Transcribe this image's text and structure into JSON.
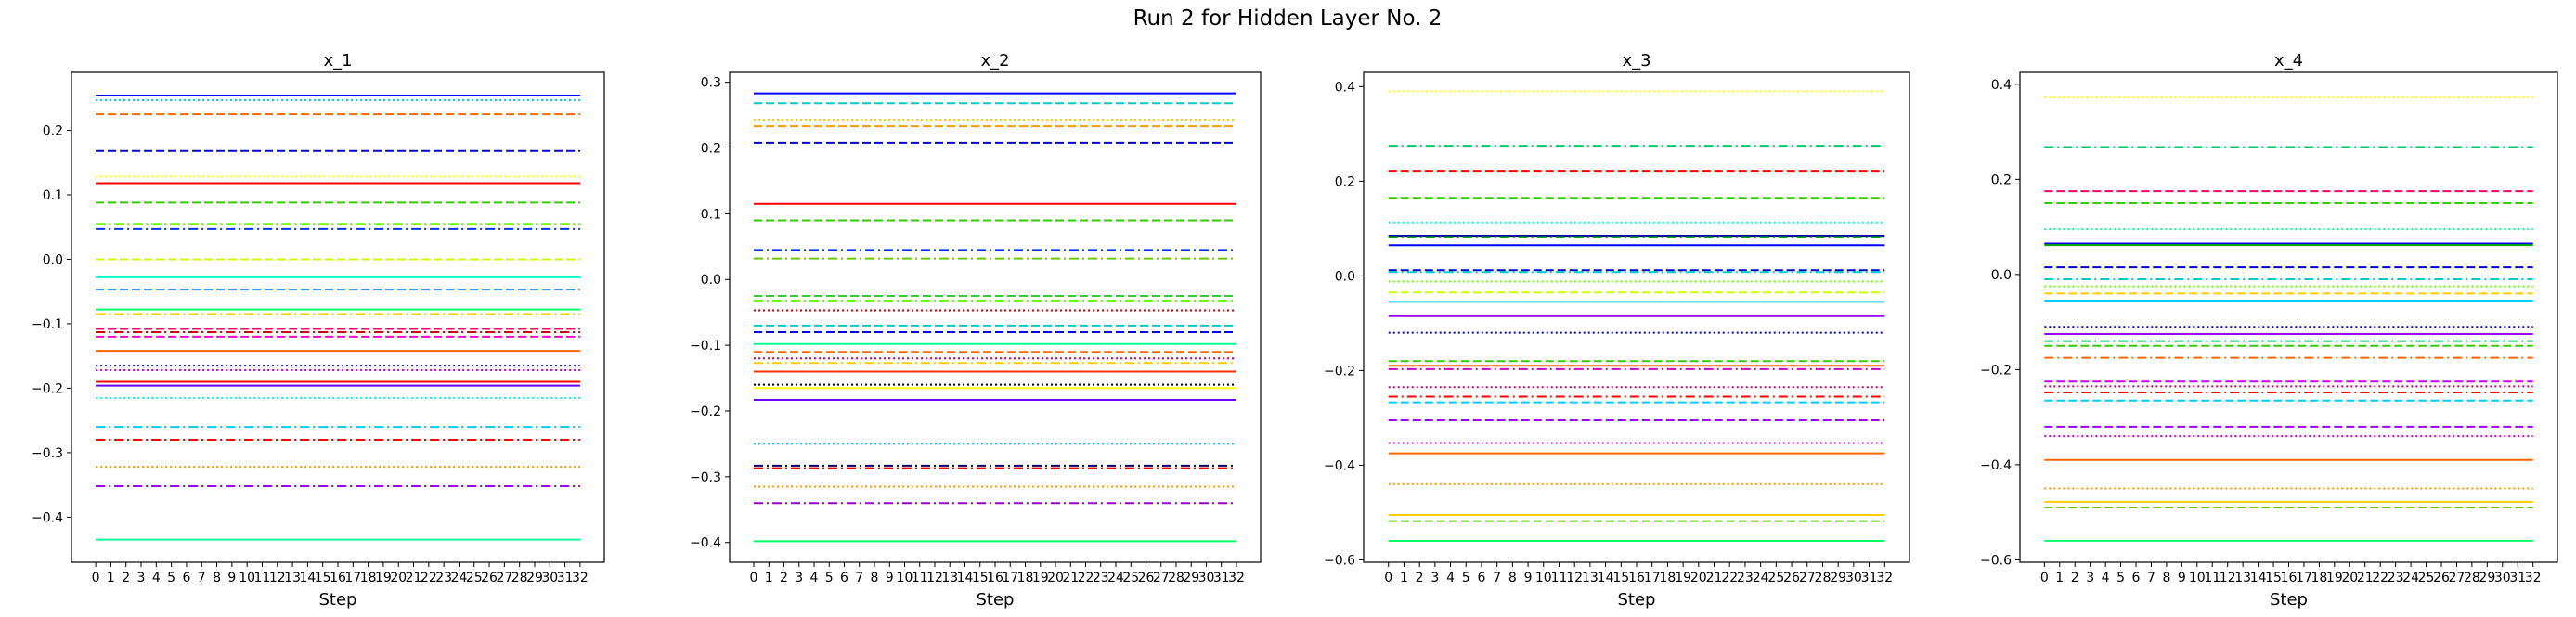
{
  "figure": {
    "title": "Run 2 for Hidden Layer No. 2"
  },
  "chart_data": [
    {
      "type": "line",
      "title": "x_1",
      "xlabel": "Step",
      "ylabel": "",
      "x_ticks": [
        0,
        1,
        2,
        3,
        4,
        5,
        6,
        7,
        8,
        9,
        10,
        11,
        12,
        13,
        14,
        15,
        16,
        17,
        18,
        19,
        20,
        21,
        22,
        23,
        24,
        25,
        26,
        27,
        28,
        29,
        30,
        31,
        32
      ],
      "xlim": [
        -1.6,
        33.6
      ],
      "ylim": [
        -0.47,
        0.29
      ],
      "y_ticks": [
        -0.4,
        -0.3,
        -0.2,
        -0.1,
        0.0,
        0.1,
        0.2
      ],
      "grid": false,
      "series": [
        {
          "values_constant": 0.254,
          "color": "#0000ff",
          "style": "solid"
        },
        {
          "values_constant": 0.247,
          "color": "#00bfff",
          "style": "dotted"
        },
        {
          "values_constant": 0.225,
          "color": "#ff6600",
          "style": "dashed"
        },
        {
          "values_constant": 0.168,
          "color": "#0000cc",
          "style": "dashed"
        },
        {
          "values_constant": 0.128,
          "color": "#ffff00",
          "style": "dotted"
        },
        {
          "values_constant": 0.118,
          "color": "#ff0000",
          "style": "solid"
        },
        {
          "values_constant": 0.088,
          "color": "#33cc00",
          "style": "dashed"
        },
        {
          "values_constant": 0.055,
          "color": "#66ff00",
          "style": "dashdot"
        },
        {
          "values_constant": 0.047,
          "color": "#0033ff",
          "style": "dashdot"
        },
        {
          "values_constant": 0.0,
          "color": "#ccff00",
          "style": "dashed"
        },
        {
          "values_constant": -0.028,
          "color": "#00ffcc",
          "style": "solid"
        },
        {
          "values_constant": -0.047,
          "color": "#3399ff",
          "style": "dashed"
        },
        {
          "values_constant": -0.078,
          "color": "#00ff66",
          "style": "solid"
        },
        {
          "values_constant": -0.085,
          "color": "#ffcc00",
          "style": "dashdot"
        },
        {
          "values_constant": -0.108,
          "color": "#ff0066",
          "style": "dashed"
        },
        {
          "values_constant": -0.113,
          "color": "#cc0000",
          "style": "dashdot"
        },
        {
          "values_constant": -0.12,
          "color": "#ff00cc",
          "style": "dashed"
        },
        {
          "values_constant": -0.142,
          "color": "#ff6600",
          "style": "solid"
        },
        {
          "values_constant": -0.165,
          "color": "#0000aa",
          "style": "dotted"
        },
        {
          "values_constant": -0.172,
          "color": "#cc00ff",
          "style": "dotted"
        },
        {
          "values_constant": -0.19,
          "color": "#ff0000",
          "style": "solid"
        },
        {
          "values_constant": -0.196,
          "color": "#6600ff",
          "style": "solid"
        },
        {
          "values_constant": -0.215,
          "color": "#00ffcc",
          "style": "dotted"
        },
        {
          "values_constant": -0.26,
          "color": "#00ccff",
          "style": "dashdot"
        },
        {
          "values_constant": -0.28,
          "color": "#ff0000",
          "style": "dashdot"
        },
        {
          "values_constant": -0.322,
          "color": "#ff9900",
          "style": "dotted"
        },
        {
          "values_constant": -0.352,
          "color": "#9900ff",
          "style": "dashdot"
        },
        {
          "values_constant": -0.435,
          "color": "#00ff99",
          "style": "solid"
        }
      ]
    },
    {
      "type": "line",
      "title": "x_2",
      "xlabel": "Step",
      "ylabel": "",
      "x_ticks": [
        0,
        1,
        2,
        3,
        4,
        5,
        6,
        7,
        8,
        9,
        10,
        11,
        12,
        13,
        14,
        15,
        16,
        17,
        18,
        19,
        20,
        21,
        22,
        23,
        24,
        25,
        26,
        27,
        28,
        29,
        30,
        31,
        32
      ],
      "xlim": [
        -1.6,
        33.6
      ],
      "ylim": [
        -0.43,
        0.315
      ],
      "y_ticks": [
        -0.4,
        -0.3,
        -0.2,
        -0.1,
        0.0,
        0.1,
        0.2,
        0.3
      ],
      "grid": false,
      "series": [
        {
          "values_constant": 0.283,
          "color": "#0000ff",
          "style": "solid"
        },
        {
          "values_constant": 0.268,
          "color": "#00cccc",
          "style": "dashed"
        },
        {
          "values_constant": 0.243,
          "color": "#ffcc00",
          "style": "dotted"
        },
        {
          "values_constant": 0.233,
          "color": "#ff9900",
          "style": "dashed"
        },
        {
          "values_constant": 0.208,
          "color": "#0000cc",
          "style": "dashed"
        },
        {
          "values_constant": 0.115,
          "color": "#ff0000",
          "style": "solid"
        },
        {
          "values_constant": 0.09,
          "color": "#33cc00",
          "style": "dashed"
        },
        {
          "values_constant": 0.045,
          "color": "#0033ff",
          "style": "dashdot"
        },
        {
          "values_constant": 0.032,
          "color": "#66cc00",
          "style": "dashdot"
        },
        {
          "values_constant": -0.025,
          "color": "#33cc33",
          "style": "dashed"
        },
        {
          "values_constant": -0.032,
          "color": "#66ff00",
          "style": "dashdot"
        },
        {
          "values_constant": -0.047,
          "color": "#cc0000",
          "style": "dotted"
        },
        {
          "values_constant": -0.07,
          "color": "#00cccc",
          "style": "dashed"
        },
        {
          "values_constant": -0.08,
          "color": "#0000ff",
          "style": "dashed"
        },
        {
          "values_constant": -0.098,
          "color": "#00ff99",
          "style": "solid"
        },
        {
          "values_constant": -0.11,
          "color": "#ff6600",
          "style": "dashed"
        },
        {
          "values_constant": -0.12,
          "color": "#cc0066",
          "style": "dotted"
        },
        {
          "values_constant": -0.127,
          "color": "#ffcc00",
          "style": "dashdot"
        },
        {
          "values_constant": -0.14,
          "color": "#ff3300",
          "style": "solid"
        },
        {
          "values_constant": -0.16,
          "color": "#000000",
          "style": "dotted"
        },
        {
          "values_constant": -0.165,
          "color": "#ffff00",
          "style": "solid"
        },
        {
          "values_constant": -0.183,
          "color": "#6600ff",
          "style": "solid"
        },
        {
          "values_constant": -0.25,
          "color": "#00ccff",
          "style": "dotted"
        },
        {
          "values_constant": -0.283,
          "color": "#000066",
          "style": "dashdot"
        },
        {
          "values_constant": -0.287,
          "color": "#ff0000",
          "style": "dashdot"
        },
        {
          "values_constant": -0.315,
          "color": "#ff9900",
          "style": "dotted"
        },
        {
          "values_constant": -0.34,
          "color": "#9900cc",
          "style": "dashdot"
        },
        {
          "values_constant": -0.398,
          "color": "#00ff66",
          "style": "solid"
        }
      ]
    },
    {
      "type": "line",
      "title": "x_3",
      "xlabel": "Step",
      "ylabel": "",
      "x_ticks": [
        0,
        1,
        2,
        3,
        4,
        5,
        6,
        7,
        8,
        9,
        10,
        11,
        12,
        13,
        14,
        15,
        16,
        17,
        18,
        19,
        20,
        21,
        22,
        23,
        24,
        25,
        26,
        27,
        28,
        29,
        30,
        31,
        32
      ],
      "xlim": [
        -1.6,
        33.6
      ],
      "ylim": [
        -0.605,
        0.43
      ],
      "y_ticks": [
        -0.6,
        -0.4,
        -0.2,
        0.0,
        0.2,
        0.4
      ],
      "grid": false,
      "series": [
        {
          "values_constant": 0.39,
          "color": "#ffff00",
          "style": "dotted"
        },
        {
          "values_constant": 0.275,
          "color": "#00cc66",
          "style": "dashdot"
        },
        {
          "values_constant": 0.222,
          "color": "#ff0000",
          "style": "dashed"
        },
        {
          "values_constant": 0.165,
          "color": "#33cc00",
          "style": "dashed"
        },
        {
          "values_constant": 0.113,
          "color": "#00ffcc",
          "style": "dotted"
        },
        {
          "values_constant": 0.085,
          "color": "#0000aa",
          "style": "solid"
        },
        {
          "values_constant": 0.082,
          "color": "#00aa00",
          "style": "dashdot"
        },
        {
          "values_constant": 0.065,
          "color": "#0000ff",
          "style": "solid"
        },
        {
          "values_constant": 0.012,
          "color": "#0000cc",
          "style": "dashed"
        },
        {
          "values_constant": 0.008,
          "color": "#00cccc",
          "style": "dashdot"
        },
        {
          "values_constant": -0.012,
          "color": "#66ff00",
          "style": "dotted"
        },
        {
          "values_constant": -0.035,
          "color": "#ccff00",
          "style": "dashed"
        },
        {
          "values_constant": -0.055,
          "color": "#00ccff",
          "style": "solid"
        },
        {
          "values_constant": -0.085,
          "color": "#9900ff",
          "style": "solid"
        },
        {
          "values_constant": -0.12,
          "color": "#0000cc",
          "style": "dotted"
        },
        {
          "values_constant": -0.18,
          "color": "#33cc00",
          "style": "dashed"
        },
        {
          "values_constant": -0.19,
          "color": "#ff6600",
          "style": "solid"
        },
        {
          "values_constant": -0.197,
          "color": "#cc00cc",
          "style": "dashdot"
        },
        {
          "values_constant": -0.235,
          "color": "#cc0066",
          "style": "dotted"
        },
        {
          "values_constant": -0.255,
          "color": "#ff0000",
          "style": "dashdot"
        },
        {
          "values_constant": -0.267,
          "color": "#00ccff",
          "style": "dashed"
        },
        {
          "values_constant": -0.305,
          "color": "#9900ff",
          "style": "dashed"
        },
        {
          "values_constant": -0.353,
          "color": "#cc00cc",
          "style": "dotted"
        },
        {
          "values_constant": -0.375,
          "color": "#ff6600",
          "style": "solid"
        },
        {
          "values_constant": -0.44,
          "color": "#ff9900",
          "style": "dotted"
        },
        {
          "values_constant": -0.505,
          "color": "#ffcc00",
          "style": "solid"
        },
        {
          "values_constant": -0.518,
          "color": "#66cc00",
          "style": "dashed"
        },
        {
          "values_constant": -0.56,
          "color": "#00ff66",
          "style": "solid"
        }
      ]
    },
    {
      "type": "line",
      "title": "x_4",
      "xlabel": "Step",
      "ylabel": "",
      "x_ticks": [
        0,
        1,
        2,
        3,
        4,
        5,
        6,
        7,
        8,
        9,
        10,
        11,
        12,
        13,
        14,
        15,
        16,
        17,
        18,
        19,
        20,
        21,
        22,
        23,
        24,
        25,
        26,
        27,
        28,
        29,
        30,
        31,
        32
      ],
      "xlim": [
        -1.6,
        33.6
      ],
      "ylim": [
        -0.605,
        0.425
      ],
      "y_ticks": [
        -0.6,
        -0.4,
        -0.2,
        0.0,
        0.2,
        0.4
      ],
      "grid": false,
      "series": [
        {
          "values_constant": 0.372,
          "color": "#ffff00",
          "style": "dotted"
        },
        {
          "values_constant": 0.268,
          "color": "#00cc66",
          "style": "dashdot"
        },
        {
          "values_constant": 0.175,
          "color": "#ff0066",
          "style": "dashed"
        },
        {
          "values_constant": 0.15,
          "color": "#33cc00",
          "style": "dashed"
        },
        {
          "values_constant": 0.095,
          "color": "#00ff99",
          "style": "dotted"
        },
        {
          "values_constant": 0.065,
          "color": "#0000ff",
          "style": "solid"
        },
        {
          "values_constant": 0.062,
          "color": "#00aa00",
          "style": "solid"
        },
        {
          "values_constant": 0.015,
          "color": "#0000cc",
          "style": "dashed"
        },
        {
          "values_constant": -0.01,
          "color": "#00cccc",
          "style": "dashdot"
        },
        {
          "values_constant": -0.025,
          "color": "#66ff00",
          "style": "dotted"
        },
        {
          "values_constant": -0.04,
          "color": "#ffcc00",
          "style": "dashed"
        },
        {
          "values_constant": -0.055,
          "color": "#00ccff",
          "style": "solid"
        },
        {
          "values_constant": -0.11,
          "color": "#0000cc",
          "style": "dotted"
        },
        {
          "values_constant": -0.125,
          "color": "#9900ff",
          "style": "solid"
        },
        {
          "values_constant": -0.14,
          "color": "#00cc66",
          "style": "dashdot"
        },
        {
          "values_constant": -0.15,
          "color": "#33cc00",
          "style": "dashed"
        },
        {
          "values_constant": -0.175,
          "color": "#ff6600",
          "style": "dashdot"
        },
        {
          "values_constant": -0.225,
          "color": "#cc00ff",
          "style": "dashed"
        },
        {
          "values_constant": -0.235,
          "color": "#cc0066",
          "style": "dotted"
        },
        {
          "values_constant": -0.248,
          "color": "#ff0000",
          "style": "dashdot"
        },
        {
          "values_constant": -0.265,
          "color": "#00ccff",
          "style": "dashed"
        },
        {
          "values_constant": -0.32,
          "color": "#9900ff",
          "style": "dashed"
        },
        {
          "values_constant": -0.34,
          "color": "#cc00cc",
          "style": "dotted"
        },
        {
          "values_constant": -0.39,
          "color": "#ff6600",
          "style": "solid"
        },
        {
          "values_constant": -0.45,
          "color": "#ff9900",
          "style": "dotted"
        },
        {
          "values_constant": -0.478,
          "color": "#ffcc00",
          "style": "solid"
        },
        {
          "values_constant": -0.49,
          "color": "#66cc00",
          "style": "dashed"
        },
        {
          "values_constant": -0.56,
          "color": "#00ff66",
          "style": "solid"
        }
      ]
    }
  ]
}
